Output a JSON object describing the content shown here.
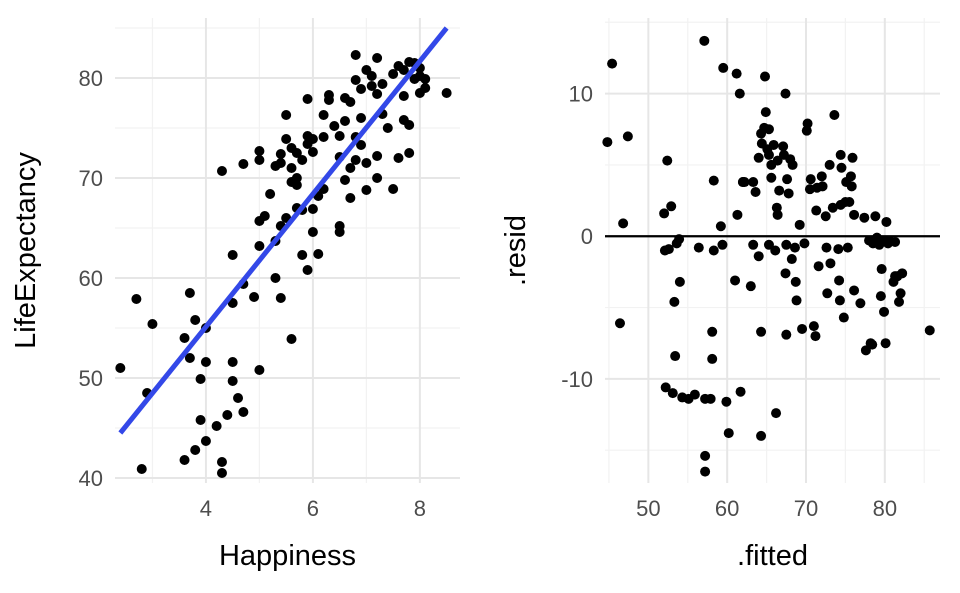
{
  "chart_data": [
    {
      "type": "scatter",
      "xlabel": "Happiness",
      "ylabel": "LifeExpectancy",
      "xlim": [
        2.3,
        8.75
      ],
      "ylim": [
        39.5,
        86
      ],
      "x_ticks": [
        4,
        6,
        8
      ],
      "y_ticks": [
        40,
        50,
        60,
        70,
        80
      ],
      "grid": true,
      "point_color": "#000000",
      "line_color": "#3348e8",
      "fit_line": {
        "x": [
          2.4,
          8.5
        ],
        "y": [
          44.5,
          85
        ]
      },
      "points": [
        [
          2.4,
          51
        ],
        [
          2.7,
          57.9
        ],
        [
          2.8,
          40.9
        ],
        [
          2.9,
          48.5
        ],
        [
          3.0,
          55.4
        ],
        [
          3.6,
          41.8
        ],
        [
          3.6,
          54.0
        ],
        [
          3.7,
          58.5
        ],
        [
          3.7,
          52.0
        ],
        [
          3.8,
          42.8
        ],
        [
          3.8,
          55.8
        ],
        [
          3.9,
          45.8
        ],
        [
          3.9,
          49.9
        ],
        [
          4.0,
          43.7
        ],
        [
          4.0,
          55.0
        ],
        [
          4.0,
          51.6
        ],
        [
          4.2,
          45.2
        ],
        [
          4.3,
          41.6
        ],
        [
          4.3,
          40.5
        ],
        [
          4.3,
          70.7
        ],
        [
          4.4,
          46.3
        ],
        [
          4.5,
          51.6
        ],
        [
          4.5,
          62.3
        ],
        [
          4.5,
          57.5
        ],
        [
          4.5,
          49.7
        ],
        [
          4.6,
          48.0
        ],
        [
          4.7,
          46.6
        ],
        [
          4.7,
          59.4
        ],
        [
          4.7,
          71.4
        ],
        [
          4.9,
          58.1
        ],
        [
          5.0,
          50.8
        ],
        [
          5.0,
          63.2
        ],
        [
          5.0,
          65.7
        ],
        [
          5.0,
          71.8
        ],
        [
          5.0,
          72.7
        ],
        [
          5.1,
          66.2
        ],
        [
          5.2,
          68.4
        ],
        [
          5.3,
          60.0
        ],
        [
          5.3,
          63.7
        ],
        [
          5.3,
          71.2
        ],
        [
          5.4,
          58.0
        ],
        [
          5.4,
          65.2
        ],
        [
          5.4,
          71.5
        ],
        [
          5.4,
          72.4
        ],
        [
          5.5,
          73.9
        ],
        [
          5.5,
          76.3
        ],
        [
          5.5,
          66.0
        ],
        [
          5.6,
          69.6
        ],
        [
          5.6,
          71.0
        ],
        [
          5.6,
          73.0
        ],
        [
          5.6,
          53.9
        ],
        [
          5.7,
          70.0
        ],
        [
          5.7,
          67.0
        ],
        [
          5.7,
          69.3
        ],
        [
          5.7,
          72.5
        ],
        [
          5.8,
          62.3
        ],
        [
          5.8,
          66.8
        ],
        [
          5.8,
          71.8
        ],
        [
          5.9,
          60.8
        ],
        [
          5.9,
          73.4
        ],
        [
          5.9,
          77.9
        ],
        [
          5.9,
          74.2
        ],
        [
          6.0,
          64.6
        ],
        [
          6.0,
          66.9
        ],
        [
          6.0,
          72.6
        ],
        [
          6.0,
          73.9
        ],
        [
          6.1,
          62.4
        ],
        [
          6.1,
          68.2
        ],
        [
          6.2,
          74.1
        ],
        [
          6.2,
          76.3
        ],
        [
          6.2,
          68.9
        ],
        [
          6.3,
          77.8
        ],
        [
          6.3,
          78.3
        ],
        [
          6.4,
          75.2
        ],
        [
          6.5,
          64.6
        ],
        [
          6.5,
          65.2
        ],
        [
          6.5,
          72.1
        ],
        [
          6.5,
          74.2
        ],
        [
          6.6,
          75.7
        ],
        [
          6.6,
          78.0
        ],
        [
          6.6,
          69.8
        ],
        [
          6.7,
          71.0
        ],
        [
          6.7,
          68.0
        ],
        [
          6.7,
          77.6
        ],
        [
          6.8,
          79.8
        ],
        [
          6.8,
          82.3
        ],
        [
          6.8,
          74.1
        ],
        [
          6.8,
          71.8
        ],
        [
          6.9,
          76.0
        ],
        [
          6.9,
          78.9
        ],
        [
          6.9,
          73.3
        ],
        [
          7.0,
          80.8
        ],
        [
          7.0,
          71.5
        ],
        [
          7.0,
          68.8
        ],
        [
          7.1,
          79.2
        ],
        [
          7.1,
          80.2
        ],
        [
          7.2,
          82.0
        ],
        [
          7.2,
          78.4
        ],
        [
          7.2,
          72.2
        ],
        [
          7.2,
          70.0
        ],
        [
          7.3,
          76.4
        ],
        [
          7.3,
          79.4
        ],
        [
          7.4,
          75.0
        ],
        [
          7.5,
          80.4
        ],
        [
          7.5,
          68.9
        ],
        [
          7.6,
          81.2
        ],
        [
          7.6,
          72.0
        ],
        [
          7.7,
          75.8
        ],
        [
          7.7,
          78.2
        ],
        [
          7.7,
          80.8
        ],
        [
          7.8,
          81.6
        ],
        [
          7.8,
          72.5
        ],
        [
          7.8,
          75.3
        ],
        [
          7.9,
          81.5
        ],
        [
          7.9,
          79.9
        ],
        [
          8.0,
          80.2
        ],
        [
          8.0,
          81.0
        ],
        [
          8.0,
          78.5
        ],
        [
          8.1,
          79.0
        ],
        [
          8.1,
          79.9
        ],
        [
          8.5,
          78.5
        ]
      ]
    },
    {
      "type": "scatter",
      "xlabel": ".fitted",
      "ylabel": ".resid",
      "xlim": [
        44.5,
        87
      ],
      "ylim": [
        -17.3,
        15.3
      ],
      "x_ticks": [
        50,
        60,
        70,
        80
      ],
      "y_ticks": [
        -10,
        0,
        10
      ],
      "grid": true,
      "reference_line_y": 0,
      "point_color": "#000000",
      "points": [
        [
          44.8,
          6.6
        ],
        [
          45.4,
          12.1
        ],
        [
          46.4,
          -6.1
        ],
        [
          46.8,
          0.9
        ],
        [
          47.4,
          7.0
        ],
        [
          52.0,
          1.6
        ],
        [
          52.1,
          -1.0
        ],
        [
          52.2,
          -10.6
        ],
        [
          52.4,
          5.3
        ],
        [
          52.6,
          -0.9
        ],
        [
          52.9,
          2.1
        ],
        [
          53.1,
          -11.0
        ],
        [
          53.3,
          -4.6
        ],
        [
          53.4,
          -8.4
        ],
        [
          53.6,
          -0.5
        ],
        [
          53.9,
          -0.2
        ],
        [
          54.0,
          -3.2
        ],
        [
          54.3,
          -11.3
        ],
        [
          55.1,
          -11.4
        ],
        [
          55.9,
          -11.1
        ],
        [
          56.4,
          -0.8
        ],
        [
          57.1,
          13.7
        ],
        [
          57.2,
          -11.4
        ],
        [
          57.2,
          -15.4
        ],
        [
          57.2,
          -16.5
        ],
        [
          57.9,
          -11.4
        ],
        [
          58.1,
          -6.7
        ],
        [
          58.1,
          -8.6
        ],
        [
          58.3,
          -1.0
        ],
        [
          58.3,
          3.9
        ],
        [
          59.2,
          0.7
        ],
        [
          59.4,
          -0.6
        ],
        [
          59.5,
          11.8
        ],
        [
          59.9,
          -11.6
        ],
        [
          60.2,
          -13.8
        ],
        [
          61.0,
          -3.1
        ],
        [
          61.2,
          11.4
        ],
        [
          61.3,
          1.5
        ],
        [
          61.6,
          10.0
        ],
        [
          61.7,
          -10.9
        ],
        [
          62.0,
          3.8
        ],
        [
          62.0,
          3.8
        ],
        [
          62.2,
          3.8
        ],
        [
          63.0,
          -3.5
        ],
        [
          63.3,
          3.8
        ],
        [
          63.3,
          -0.6
        ],
        [
          63.6,
          3.1
        ],
        [
          64.0,
          5.5
        ],
        [
          64.0,
          -1.4
        ],
        [
          64.3,
          7.2
        ],
        [
          64.4,
          6.5
        ],
        [
          64.3,
          -14.0
        ],
        [
          64.3,
          -6.7
        ],
        [
          64.7,
          7.6
        ],
        [
          64.8,
          11.2
        ],
        [
          64.9,
          8.7
        ],
        [
          65.1,
          6.1
        ],
        [
          65.3,
          7.5
        ],
        [
          65.3,
          5.7
        ],
        [
          65.3,
          -0.6
        ],
        [
          65.6,
          5.0
        ],
        [
          65.6,
          4.1
        ],
        [
          65.9,
          6.4
        ],
        [
          66.1,
          -1.0
        ],
        [
          66.2,
          -12.4
        ],
        [
          66.3,
          2.0
        ],
        [
          66.4,
          5.3
        ],
        [
          66.4,
          1.5
        ],
        [
          66.6,
          3.2
        ],
        [
          67.1,
          6.3
        ],
        [
          67.2,
          5.7
        ],
        [
          67.4,
          10.0
        ],
        [
          67.4,
          -2.6
        ],
        [
          67.5,
          -6.9
        ],
        [
          67.5,
          -0.6
        ],
        [
          67.6,
          4.0
        ],
        [
          67.8,
          3.0
        ],
        [
          68.0,
          5.4
        ],
        [
          68.2,
          -1.6
        ],
        [
          68.3,
          5.0
        ],
        [
          68.6,
          -0.8
        ],
        [
          68.7,
          -3.2
        ],
        [
          68.8,
          -4.5
        ],
        [
          69.2,
          0.8
        ],
        [
          69.5,
          -6.5
        ],
        [
          69.8,
          -0.5
        ],
        [
          70.1,
          7.4
        ],
        [
          70.2,
          7.9
        ],
        [
          70.5,
          3.3
        ],
        [
          70.6,
          4.0
        ],
        [
          71.0,
          -6.3
        ],
        [
          71.2,
          -7.0
        ],
        [
          71.3,
          1.8
        ],
        [
          71.4,
          3.4
        ],
        [
          71.6,
          -2.1
        ],
        [
          72.0,
          4.2
        ],
        [
          72.1,
          3.5
        ],
        [
          72.5,
          1.4
        ],
        [
          72.6,
          -0.8
        ],
        [
          72.7,
          -4.0
        ],
        [
          73.0,
          5.0
        ],
        [
          73.1,
          -1.9
        ],
        [
          73.4,
          2.0
        ],
        [
          73.6,
          8.5
        ],
        [
          74.1,
          -0.9
        ],
        [
          74.2,
          -3.1
        ],
        [
          74.3,
          -4.5
        ],
        [
          74.4,
          5.7
        ],
        [
          74.4,
          2.2
        ],
        [
          74.5,
          4.8
        ],
        [
          74.8,
          -5.7
        ],
        [
          75.0,
          2.4
        ],
        [
          75.1,
          3.8
        ],
        [
          75.3,
          -0.8
        ],
        [
          75.5,
          2.4
        ],
        [
          75.7,
          4.2
        ],
        [
          75.8,
          3.5
        ],
        [
          75.9,
          5.5
        ],
        [
          76.1,
          1.5
        ],
        [
          76.1,
          -3.8
        ],
        [
          76.9,
          -4.7
        ],
        [
          77.4,
          1.3
        ],
        [
          77.6,
          -8.0
        ],
        [
          78.0,
          -0.3
        ],
        [
          78.2,
          -7.5
        ],
        [
          78.4,
          -7.6
        ],
        [
          78.5,
          -0.5
        ],
        [
          78.8,
          1.4
        ],
        [
          79.0,
          -0.1
        ],
        [
          79.3,
          -0.6
        ],
        [
          79.5,
          -4.2
        ],
        [
          79.6,
          -2.3
        ],
        [
          79.7,
          -0.3
        ],
        [
          79.9,
          -5.3
        ],
        [
          80.1,
          -7.5
        ],
        [
          80.2,
          1.0
        ],
        [
          80.4,
          -0.5
        ],
        [
          80.6,
          -0.3
        ],
        [
          81.1,
          -3.2
        ],
        [
          81.3,
          -0.4
        ],
        [
          81.3,
          -2.8
        ],
        [
          81.6,
          -2.8
        ],
        [
          81.8,
          -4.6
        ],
        [
          82.0,
          -4.0
        ],
        [
          82.2,
          -2.6
        ],
        [
          85.7,
          -6.6
        ]
      ]
    }
  ]
}
